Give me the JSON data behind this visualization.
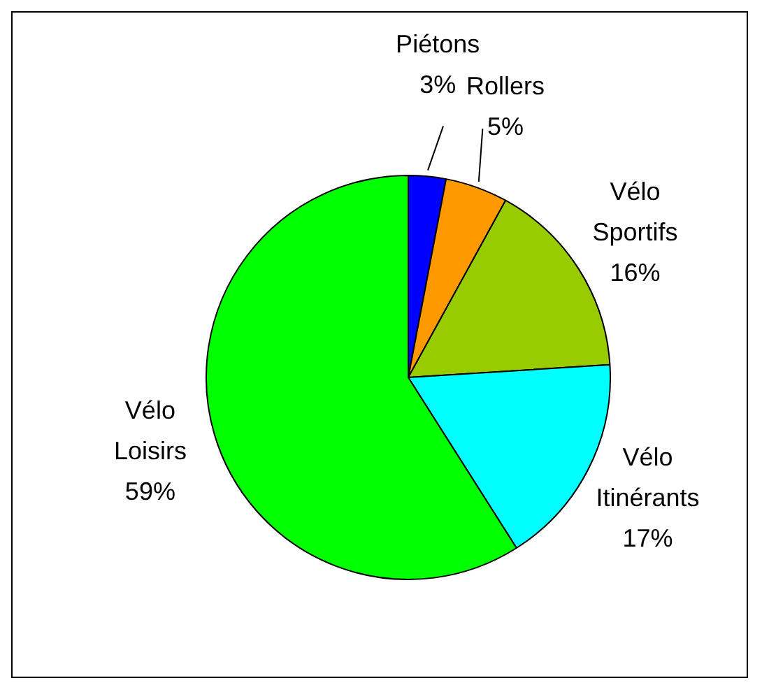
{
  "chart_data": {
    "type": "pie",
    "categories": [
      "Piétons",
      "Rollers",
      "Vélo Sportifs",
      "Vélo Itinérants",
      "Vélo Loisirs"
    ],
    "values": [
      3,
      5,
      16,
      17,
      59
    ],
    "colors": [
      "#0000ff",
      "#ff9900",
      "#99cc00",
      "#00ffff",
      "#00ff00"
    ],
    "value_labels": [
      "3%",
      "5%",
      "16%",
      "17%",
      "59%"
    ],
    "legend": false
  }
}
